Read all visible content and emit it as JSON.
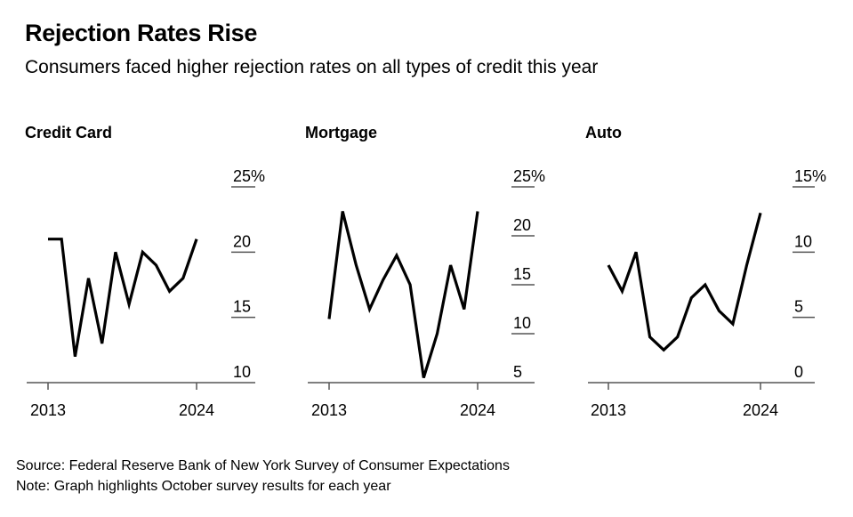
{
  "header": {
    "title": "Rejection Rates Rise",
    "subtitle": "Consumers faced higher rejection rates on all types of credit this year"
  },
  "footer": {
    "source": "Source: Federal Reserve Bank of New York Survey of Consumer Expectations",
    "note": "Note: Graph highlights October survey results for each year"
  },
  "colors": {
    "line": "#000000",
    "tick": "#555555",
    "background": "#ffffff"
  },
  "chart_data": [
    {
      "type": "line",
      "title": "Credit Card",
      "x": [
        2013,
        2014,
        2015,
        2016,
        2017,
        2018,
        2019,
        2020,
        2021,
        2022,
        2023,
        2024
      ],
      "values": [
        21.0,
        21.0,
        12.0,
        18.0,
        13.0,
        20.0,
        16.0,
        20.0,
        19.0,
        17.0,
        18.0,
        21.0
      ],
      "ylim": [
        10,
        25
      ],
      "ytick_values": [
        25,
        20,
        15,
        10
      ],
      "ytick_labels": [
        "25%",
        "20",
        "15",
        "10"
      ],
      "xtick_values": [
        2013,
        2024
      ],
      "xtick_labels": [
        "2013",
        "2024"
      ]
    },
    {
      "type": "line",
      "title": "Mortgage",
      "x": [
        2013,
        2014,
        2015,
        2016,
        2017,
        2018,
        2019,
        2020,
        2021,
        2022,
        2023,
        2024
      ],
      "values": [
        11.5,
        22.5,
        17.0,
        12.5,
        15.5,
        18.0,
        15.0,
        5.5,
        10.0,
        17.0,
        12.5,
        22.5
      ],
      "ylim": [
        5,
        25
      ],
      "ytick_values": [
        25,
        20,
        15,
        10,
        5
      ],
      "ytick_labels": [
        "25%",
        "20",
        "15",
        "10",
        "5"
      ],
      "xtick_values": [
        2013,
        2024
      ],
      "xtick_labels": [
        "2013",
        "2024"
      ]
    },
    {
      "type": "line",
      "title": "Auto",
      "x": [
        2013,
        2014,
        2015,
        2016,
        2017,
        2018,
        2019,
        2020,
        2021,
        2022,
        2023,
        2024
      ],
      "values": [
        9.0,
        7.0,
        10.0,
        3.5,
        2.5,
        3.5,
        6.5,
        7.5,
        5.5,
        4.5,
        9.0,
        13.0
      ],
      "ylim": [
        0,
        15
      ],
      "ytick_values": [
        15,
        10,
        5,
        0
      ],
      "ytick_labels": [
        "15%",
        "10",
        "5",
        "0"
      ],
      "xtick_values": [
        2013,
        2024
      ],
      "xtick_labels": [
        "2013",
        "2024"
      ]
    }
  ]
}
